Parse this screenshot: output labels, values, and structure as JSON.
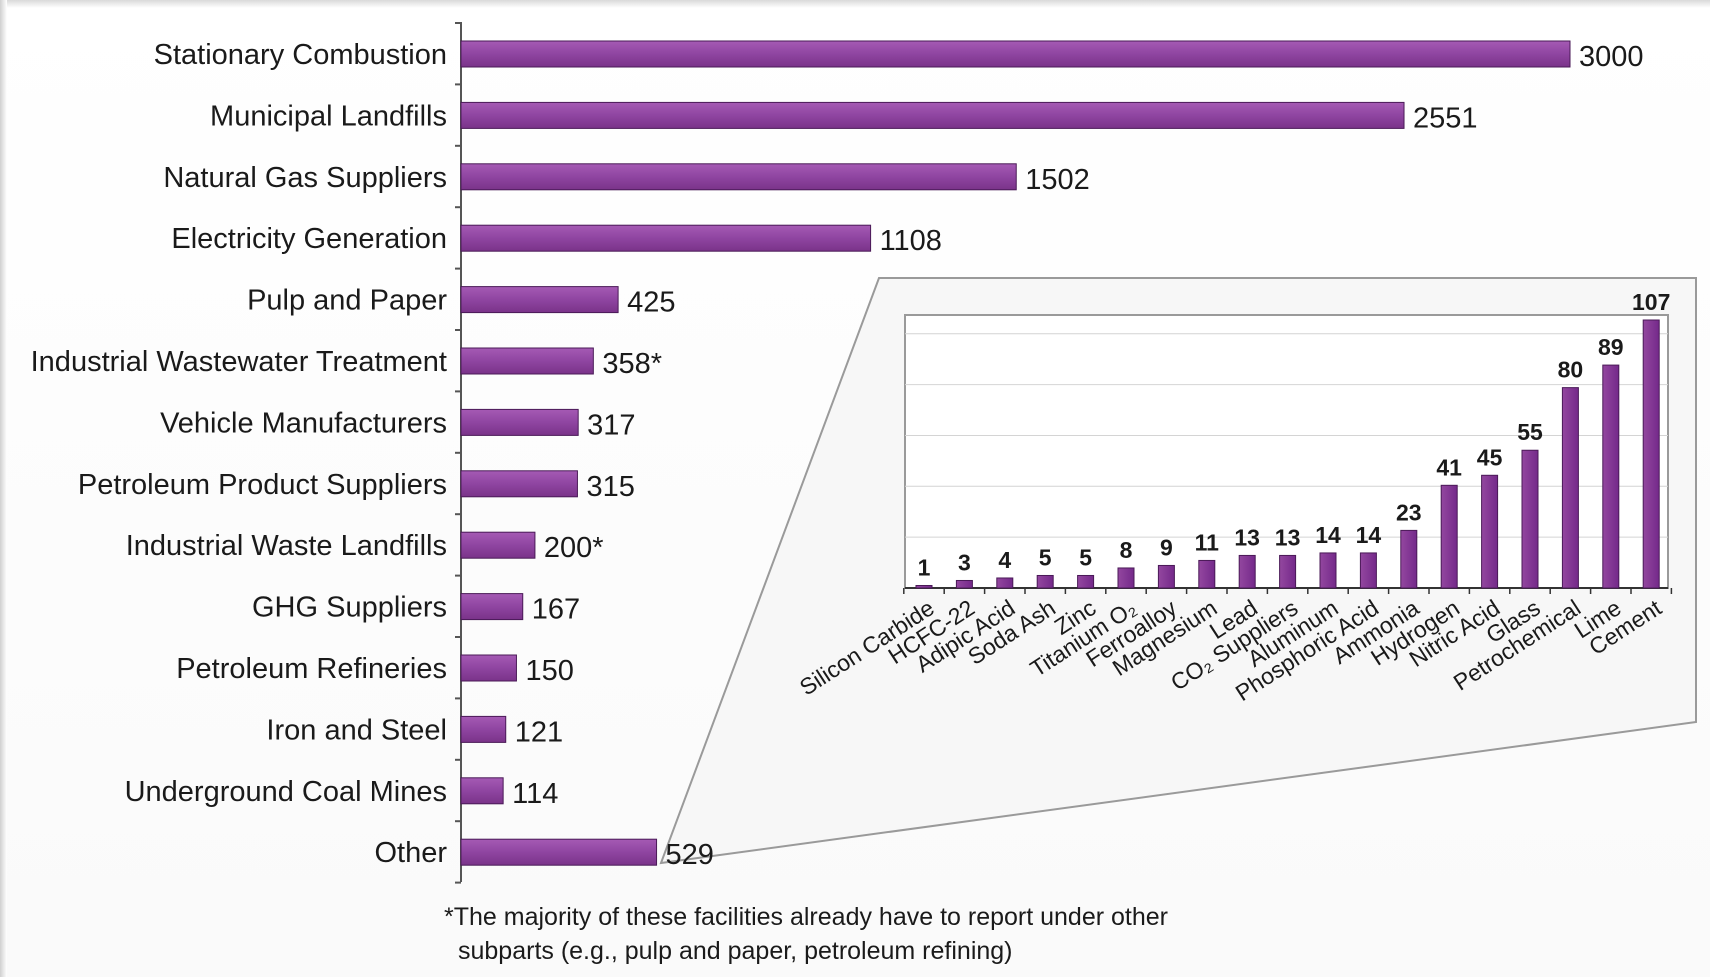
{
  "colors": {
    "main_bar": "#8a3f9b",
    "main_bar_light": "#a55ab4",
    "inset_bar": "#7f3191",
    "axis": "#555555",
    "inset_border": "#9a9a9a",
    "gridline": "#d4d4d4"
  },
  "chart_data": [
    {
      "type": "bar",
      "orientation": "horizontal",
      "categories": [
        "Stationary Combustion",
        "Municipal Landfills",
        "Natural Gas Suppliers",
        "Electricity Generation",
        "Pulp and Paper",
        "Industrial Wastewater Treatment",
        "Vehicle Manufacturers",
        "Petroleum Product Suppliers",
        "Industrial Waste Landfills",
        "GHG Suppliers",
        "Petroleum Refineries",
        "Iron and Steel",
        "Underground Coal Mines",
        "Other"
      ],
      "values": [
        3000,
        2551,
        1502,
        1108,
        425,
        358,
        317,
        315,
        200,
        167,
        150,
        121,
        114,
        529
      ],
      "value_labels": [
        "3000",
        "2551",
        "1502",
        "1108",
        "425",
        "358*",
        "317",
        "315",
        "200*",
        "167",
        "150",
        "121",
        "114",
        "529"
      ],
      "xlim": [
        0,
        3000
      ]
    },
    {
      "type": "bar",
      "orientation": "vertical",
      "categories": [
        "Silicon Carbide",
        "HCFC-22",
        "Adipic Acid",
        "Soda Ash",
        "Zinc",
        "Titanium O₂",
        "Ferroalloy",
        "Magnesium",
        "Lead",
        "CO₂ Suppliers",
        "Aluminum",
        "Phosphoric Acid",
        "Ammonia",
        "Hydrogen",
        "Nitric Acid",
        "Glass",
        "Petrochemical",
        "Lime",
        "Cement"
      ],
      "values": [
        1,
        3,
        4,
        5,
        5,
        8,
        9,
        11,
        13,
        13,
        14,
        14,
        23,
        41,
        45,
        55,
        80,
        89,
        107
      ],
      "ylim": [
        0,
        107
      ],
      "grid": true
    }
  ],
  "footnote": {
    "line1": "*The majority of these facilities already have to report under other",
    "line2": "subparts (e.g., pulp and paper, petroleum refining)"
  }
}
